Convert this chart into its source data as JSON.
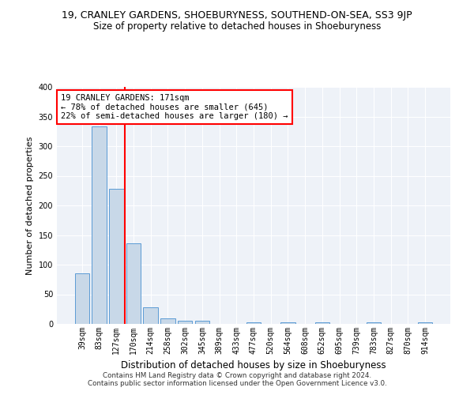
{
  "title1": "19, CRANLEY GARDENS, SHOEBURYNESS, SOUTHEND-ON-SEA, SS3 9JP",
  "title2": "Size of property relative to detached houses in Shoeburyness",
  "xlabel": "Distribution of detached houses by size in Shoeburyness",
  "ylabel": "Number of detached properties",
  "footer": "Contains HM Land Registry data © Crown copyright and database right 2024.\nContains public sector information licensed under the Open Government Licence v3.0.",
  "categories": [
    "39sqm",
    "83sqm",
    "127sqm",
    "170sqm",
    "214sqm",
    "258sqm",
    "302sqm",
    "345sqm",
    "389sqm",
    "433sqm",
    "477sqm",
    "520sqm",
    "564sqm",
    "608sqm",
    "652sqm",
    "695sqm",
    "739sqm",
    "783sqm",
    "827sqm",
    "870sqm",
    "914sqm"
  ],
  "values": [
    85,
    333,
    228,
    136,
    28,
    10,
    5,
    5,
    0,
    0,
    3,
    0,
    3,
    0,
    3,
    0,
    0,
    3,
    0,
    0,
    3
  ],
  "bar_color": "#c8d8e8",
  "bar_edge_color": "#5b9bd5",
  "red_line_x": 2.5,
  "annotation_text": "19 CRANLEY GARDENS: 171sqm\n← 78% of detached houses are smaller (645)\n22% of semi-detached houses are larger (180) →",
  "annotation_box_color": "white",
  "annotation_box_edge": "red",
  "ylim": [
    0,
    400
  ],
  "bg_color": "#eef2f8",
  "grid_color": "white",
  "title1_fontsize": 9,
  "title2_fontsize": 8.5,
  "tick_fontsize": 7,
  "ylabel_fontsize": 8,
  "xlabel_fontsize": 8.5,
  "annotation_fontsize": 7.5
}
